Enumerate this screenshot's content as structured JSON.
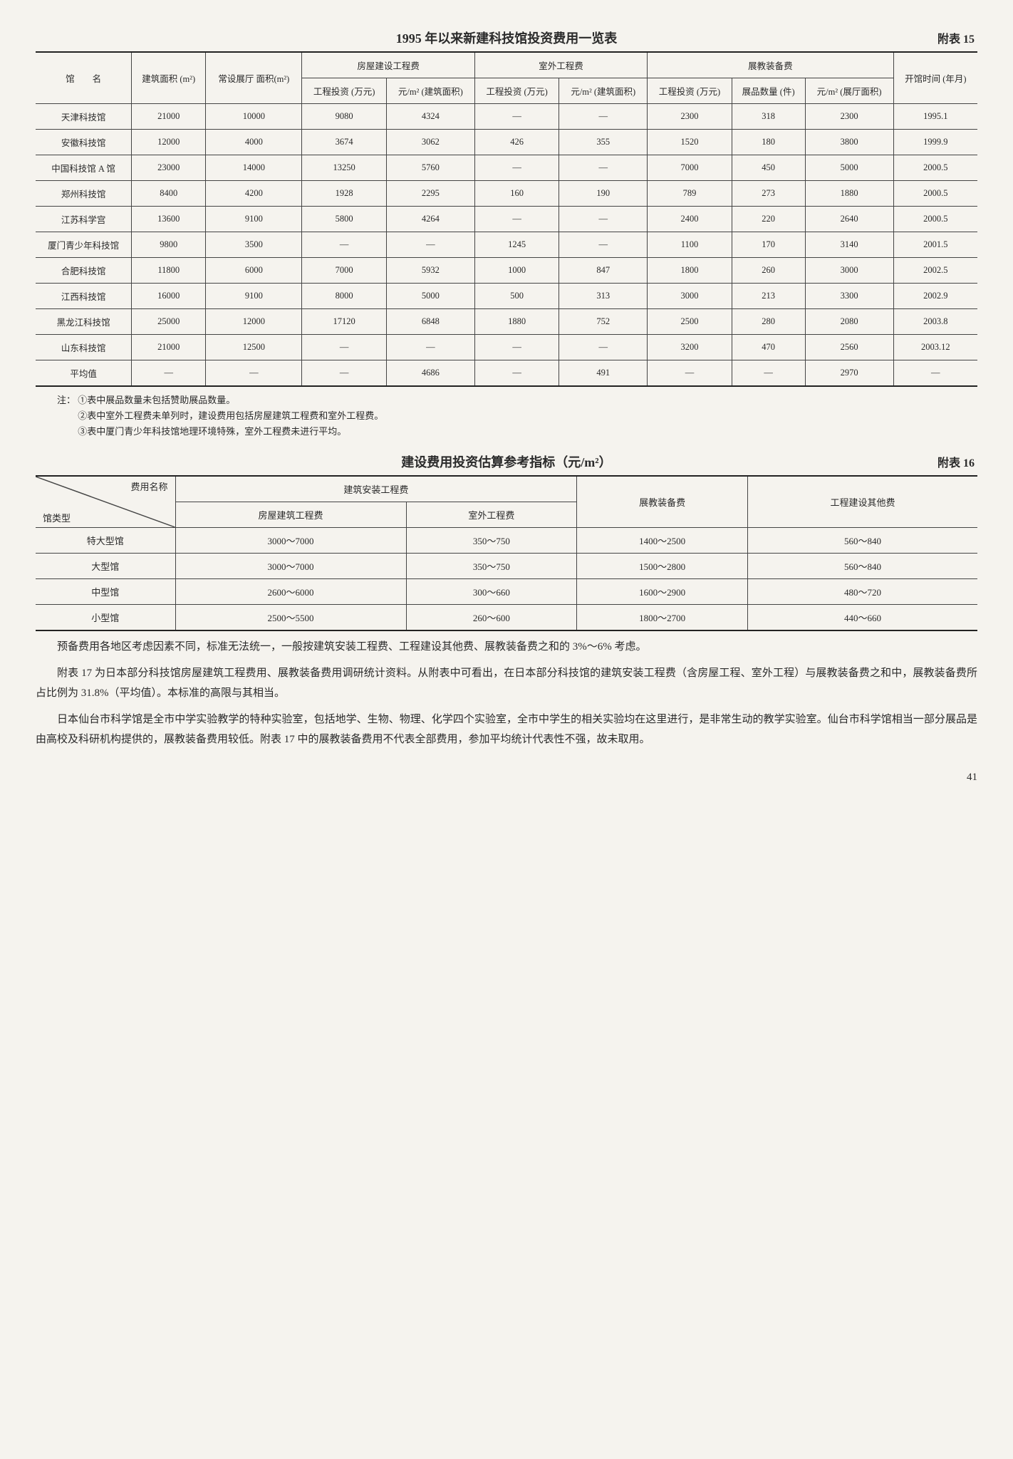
{
  "table15": {
    "title": "1995 年以来新建科技馆投资费用一览表",
    "appendix": "附表 15",
    "headers": {
      "name": "馆　　名",
      "area": "建筑面积 (m²)",
      "hall": "常设展厅 面积(m²)",
      "building_group": "房屋建设工程费",
      "outdoor_group": "室外工程费",
      "exhibit_group": "展教装备费",
      "inv": "工程投资 (万元)",
      "per_build": "元/m² (建筑面积)",
      "per_hall": "元/m² (展厅面积)",
      "items": "展品数量 (件)",
      "open": "开馆时间 (年月)"
    },
    "rows": [
      {
        "name": "天津科技馆",
        "area": "21000",
        "hall": "10000",
        "b_inv": "9080",
        "b_per": "4324",
        "o_inv": "—",
        "o_per": "—",
        "e_inv": "2300",
        "e_items": "318",
        "e_per": "2300",
        "open": "1995.1"
      },
      {
        "name": "安徽科技馆",
        "area": "12000",
        "hall": "4000",
        "b_inv": "3674",
        "b_per": "3062",
        "o_inv": "426",
        "o_per": "355",
        "e_inv": "1520",
        "e_items": "180",
        "e_per": "3800",
        "open": "1999.9"
      },
      {
        "name": "中国科技馆 A 馆",
        "area": "23000",
        "hall": "14000",
        "b_inv": "13250",
        "b_per": "5760",
        "o_inv": "—",
        "o_per": "—",
        "e_inv": "7000",
        "e_items": "450",
        "e_per": "5000",
        "open": "2000.5"
      },
      {
        "name": "郑州科技馆",
        "area": "8400",
        "hall": "4200",
        "b_inv": "1928",
        "b_per": "2295",
        "o_inv": "160",
        "o_per": "190",
        "e_inv": "789",
        "e_items": "273",
        "e_per": "1880",
        "open": "2000.5"
      },
      {
        "name": "江苏科学宫",
        "area": "13600",
        "hall": "9100",
        "b_inv": "5800",
        "b_per": "4264",
        "o_inv": "—",
        "o_per": "—",
        "e_inv": "2400",
        "e_items": "220",
        "e_per": "2640",
        "open": "2000.5"
      },
      {
        "name": "厦门青少年科技馆",
        "area": "9800",
        "hall": "3500",
        "b_inv": "—",
        "b_per": "—",
        "o_inv": "1245",
        "o_per": "—",
        "e_inv": "1100",
        "e_items": "170",
        "e_per": "3140",
        "open": "2001.5"
      },
      {
        "name": "合肥科技馆",
        "area": "11800",
        "hall": "6000",
        "b_inv": "7000",
        "b_per": "5932",
        "o_inv": "1000",
        "o_per": "847",
        "e_inv": "1800",
        "e_items": "260",
        "e_per": "3000",
        "open": "2002.5"
      },
      {
        "name": "江西科技馆",
        "area": "16000",
        "hall": "9100",
        "b_inv": "8000",
        "b_per": "5000",
        "o_inv": "500",
        "o_per": "313",
        "e_inv": "3000",
        "e_items": "213",
        "e_per": "3300",
        "open": "2002.9"
      },
      {
        "name": "黑龙江科技馆",
        "area": "25000",
        "hall": "12000",
        "b_inv": "17120",
        "b_per": "6848",
        "o_inv": "1880",
        "o_per": "752",
        "e_inv": "2500",
        "e_items": "280",
        "e_per": "2080",
        "open": "2003.8"
      },
      {
        "name": "山东科技馆",
        "area": "21000",
        "hall": "12500",
        "b_inv": "—",
        "b_per": "—",
        "o_inv": "—",
        "o_per": "—",
        "e_inv": "3200",
        "e_items": "470",
        "e_per": "2560",
        "open": "2003.12"
      },
      {
        "name": "平均值",
        "area": "—",
        "hall": "—",
        "b_inv": "—",
        "b_per": "4686",
        "o_inv": "—",
        "o_per": "491",
        "e_inv": "—",
        "e_items": "—",
        "e_per": "2970",
        "open": "—"
      }
    ],
    "notes_label": "注：",
    "notes": [
      "①表中展品数量未包括赞助展品数量。",
      "②表中室外工程费未单列时，建设费用包括房屋建筑工程费和室外工程费。",
      "③表中厦门青少年科技馆地理环境特殊，室外工程费未进行平均。"
    ]
  },
  "table16": {
    "title": "建设费用投资估算参考指标（元/m²）",
    "appendix": "附表 16",
    "diag_top": "费用名称",
    "diag_bot": "馆类型",
    "headers": {
      "install": "建筑安装工程费",
      "building": "房屋建筑工程费",
      "outdoor": "室外工程费",
      "exhibit": "展教装备费",
      "other": "工程建设其他费"
    },
    "rows": [
      {
        "type": "特大型馆",
        "building": "3000～7000",
        "outdoor": "350～750",
        "exhibit": "1400～2500",
        "other": "560～840"
      },
      {
        "type": "大型馆",
        "building": "3000～7000",
        "outdoor": "350～750",
        "exhibit": "1500～2800",
        "other": "560～840"
      },
      {
        "type": "中型馆",
        "building": "2600～6000",
        "outdoor": "300～660",
        "exhibit": "1600～2900",
        "other": "480～720"
      },
      {
        "type": "小型馆",
        "building": "2500～5500",
        "outdoor": "260～600",
        "exhibit": "1800～2700",
        "other": "440～660"
      }
    ]
  },
  "paragraphs": [
    "预备费用各地区考虑因素不同，标准无法统一，一般按建筑安装工程费、工程建设其他费、展教装备费之和的 3%～6% 考虑。",
    "附表 17 为日本部分科技馆房屋建筑工程费用、展教装备费用调研统计资料。从附表中可看出，在日本部分科技馆的建筑安装工程费（含房屋工程、室外工程）与展教装备费之和中，展教装备费所占比例为 31.8%（平均值）。本标准的高限与其相当。",
    "日本仙台市科学馆是全市中学实验教学的特种实验室，包括地学、生物、物理、化学四个实验室，全市中学生的相关实验均在这里进行，是非常生动的教学实验室。仙台市科学馆相当一部分展品是由高校及科研机构提供的，展教装备费用较低。附表 17 中的展教装备费用不代表全部费用，参加平均统计代表性不强，故未取用。"
  ],
  "page_number": "41"
}
